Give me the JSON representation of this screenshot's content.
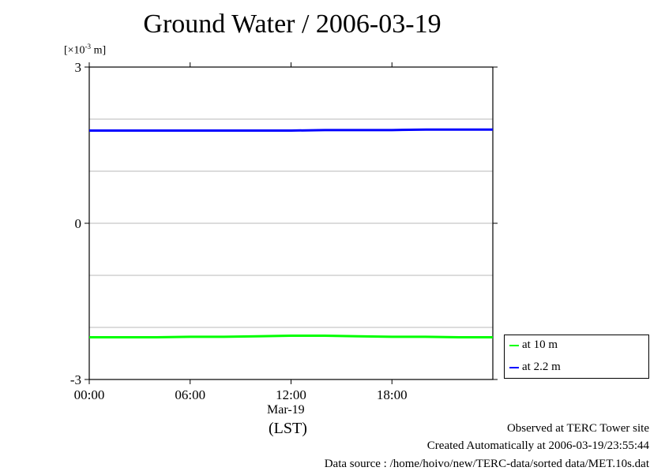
{
  "header": {
    "title": "Ground Water / 2006-03-19"
  },
  "axis": {
    "unit_prefix": "[×10",
    "unit_exp": "-3",
    "unit_suffix": " m]",
    "day_label": "Mar-19",
    "time_zone": "(LST)"
  },
  "footer": {
    "line1": "Observed at TERC Tower site",
    "line2": "Created Automatically at 2006-03-19/23:55:44",
    "line3": "Data source : /home/hoivo/new/TERC-data/sorted  data/MET.10s.dat"
  },
  "legend": {
    "items": [
      {
        "label": "at 10 m",
        "color": "#00ff00"
      },
      {
        "label": "at 2.2 m",
        "color": "#0000ff"
      }
    ]
  },
  "chart_data": {
    "type": "line",
    "title": "Ground Water / 2006-03-19",
    "ylabel": "[×10-3 m]",
    "xlabel": "(LST)",
    "x_unit": "hours",
    "xlim": [
      0,
      24
    ],
    "ylim": [
      -3,
      3
    ],
    "yticks": [
      -3,
      0,
      3
    ],
    "ytick_labels": [
      "-3",
      "0",
      "3"
    ],
    "ygrid": [
      -2,
      -1,
      0,
      1,
      2
    ],
    "xticks": [
      0,
      6,
      12,
      18
    ],
    "xtick_labels": [
      "00:00",
      "06:00",
      "12:00",
      "18:00"
    ],
    "legend_position": "lower-right, outside plot",
    "grid": true,
    "x": [
      0,
      2,
      4,
      6,
      8,
      10,
      12,
      14,
      16,
      18,
      20,
      22,
      24
    ],
    "series": [
      {
        "name": "at 10 m",
        "color": "#00ff00",
        "values": [
          -2.19,
          -2.19,
          -2.19,
          -2.18,
          -2.18,
          -2.17,
          -2.16,
          -2.16,
          -2.17,
          -2.18,
          -2.18,
          -2.19,
          -2.19
        ]
      },
      {
        "name": "at 2.2 m",
        "color": "#0000ff",
        "values": [
          1.78,
          1.78,
          1.78,
          1.78,
          1.78,
          1.78,
          1.78,
          1.79,
          1.79,
          1.79,
          1.8,
          1.8,
          1.8
        ]
      }
    ]
  }
}
